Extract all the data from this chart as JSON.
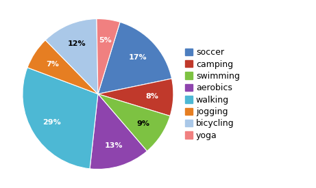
{
  "labels": [
    "soccer",
    "camping",
    "swimming",
    "aerobics",
    "walking",
    "jogging",
    "bicycling",
    "yoga"
  ],
  "values": [
    17,
    8,
    9,
    13,
    29,
    7,
    12,
    5
  ],
  "colors": [
    "#4d7ebf",
    "#c0392b",
    "#7dc242",
    "#8e44ad",
    "#4db8d4",
    "#e67e22",
    "#aac8e8",
    "#f08080"
  ],
  "pct_colors": [
    "white",
    "white",
    "black",
    "white",
    "white",
    "white",
    "black",
    "white"
  ],
  "title_fontsize": 13,
  "pct_fontsize": 8,
  "legend_fontsize": 9,
  "startangle": 73
}
